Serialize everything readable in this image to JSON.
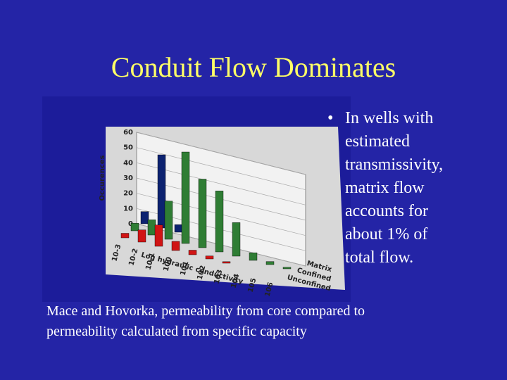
{
  "slide": {
    "title": "Conduit Flow Dominates",
    "bullet": [
      "In wells with",
      "estimated",
      "transmissivity,",
      "matrix flow",
      "accounts for",
      "about 1% of",
      "total flow."
    ],
    "caption": [
      "Mace  and Hovorka, permeability from core compared to",
      "permeability  calculated from specific capacity"
    ]
  },
  "chart_data": {
    "type": "bar3d",
    "ylabel": "Occurences",
    "xlabel": "Log hydraulic conductivity",
    "categories": [
      "10-3",
      "10-2",
      "10-1",
      "100",
      "101",
      "102",
      "103",
      "104",
      "105",
      "106"
    ],
    "ylim": [
      0,
      60
    ],
    "yticks": [
      0,
      10,
      20,
      30,
      40,
      50,
      60
    ],
    "series": [
      {
        "name": "Matrix",
        "color": "#0c2270",
        "values": [
          8,
          48,
          5,
          0,
          0,
          0,
          0,
          0,
          0,
          0
        ]
      },
      {
        "name": "Confined",
        "color": "#2f7d34",
        "values": [
          5,
          10,
          25,
          60,
          45,
          40,
          22,
          5,
          2,
          1
        ]
      },
      {
        "name": "Unconfined",
        "color": "#d01414",
        "values": [
          3,
          8,
          14,
          6,
          3,
          2,
          1,
          0,
          0,
          0
        ]
      }
    ]
  }
}
